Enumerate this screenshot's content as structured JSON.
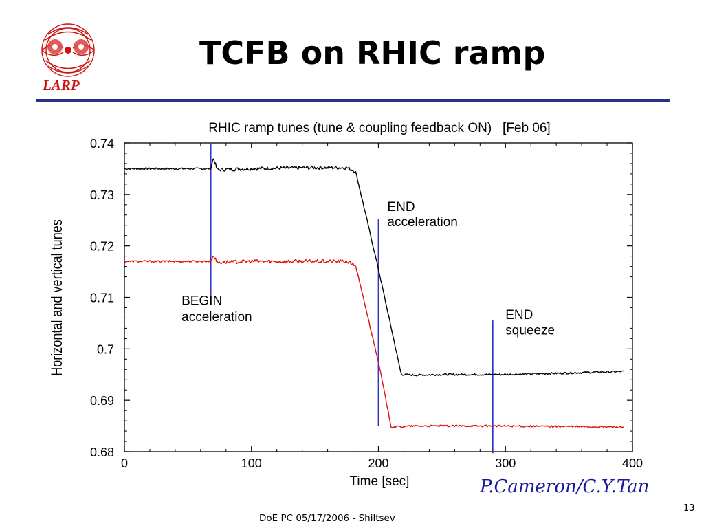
{
  "slide": {
    "title": "TCFB on RHIC ramp",
    "logo_text": "LARP",
    "credit": "P.Cameron/C.Y.Tan",
    "footer": "DoE PC 05/17/2006 - Shiltsev",
    "page_number": "13"
  },
  "colors": {
    "title_rule": "#2b2f8c",
    "credit": "#1a1a9a",
    "logo": "#cc1111",
    "series_black": "#000000",
    "series_red": "#e01010",
    "markers": "#3333cc"
  },
  "chart_data": {
    "type": "line",
    "title": "RHIC ramp tunes (tune & coupling feedback ON)   [Feb 06]",
    "xlabel": "Time [sec]",
    "ylabel": "Horizontal and vertical tunes",
    "xlim": [
      0,
      400
    ],
    "ylim": [
      0.68,
      0.74
    ],
    "xticks": [
      0,
      100,
      200,
      300,
      400
    ],
    "xtick_labels": [
      "0",
      "100",
      "200",
      "300",
      "400"
    ],
    "yticks": [
      0.68,
      0.69,
      0.7,
      0.71,
      0.72,
      0.73,
      0.74
    ],
    "ytick_labels": [
      "0.68",
      "0.69",
      "0.7",
      "0.71",
      "0.72",
      "0.73",
      "0.74"
    ],
    "grid": false,
    "series": [
      {
        "color": "#000000",
        "x": [
          0,
          68,
          70,
          73,
          100,
          150,
          175,
          182,
          200,
          218,
          230,
          250,
          300,
          350,
          393
        ],
        "y": [
          0.735,
          0.735,
          0.7372,
          0.7348,
          0.735,
          0.7352,
          0.7352,
          0.7345,
          0.7155,
          0.695,
          0.6949,
          0.695,
          0.695,
          0.6953,
          0.6956
        ]
      },
      {
        "color": "#e01010",
        "x": [
          0,
          68,
          70,
          73,
          100,
          150,
          175,
          182,
          200,
          210,
          230,
          250,
          300,
          350,
          393
        ],
        "y": [
          0.717,
          0.717,
          0.7182,
          0.7168,
          0.717,
          0.717,
          0.717,
          0.7162,
          0.6975,
          0.6848,
          0.685,
          0.685,
          0.685,
          0.6849,
          0.6848
        ]
      }
    ],
    "annotations": [
      {
        "lines": [
          "BEGIN",
          "acceleration"
        ],
        "x": 68,
        "y_range": [
          0.71,
          0.74
        ],
        "label_x": 45,
        "label_y": [
          0.7085,
          0.7054
        ]
      },
      {
        "lines": [
          "END",
          "acceleration"
        ],
        "x": 200,
        "y_range": [
          0.685,
          0.7252
        ],
        "label_x": 207,
        "label_y": [
          0.7268,
          0.7238
        ]
      },
      {
        "lines": [
          "END",
          "squeeze"
        ],
        "x": 290,
        "y_range": [
          0.6797,
          0.7055
        ],
        "label_x": 300,
        "label_y": [
          0.7058,
          0.7028
        ]
      }
    ]
  }
}
